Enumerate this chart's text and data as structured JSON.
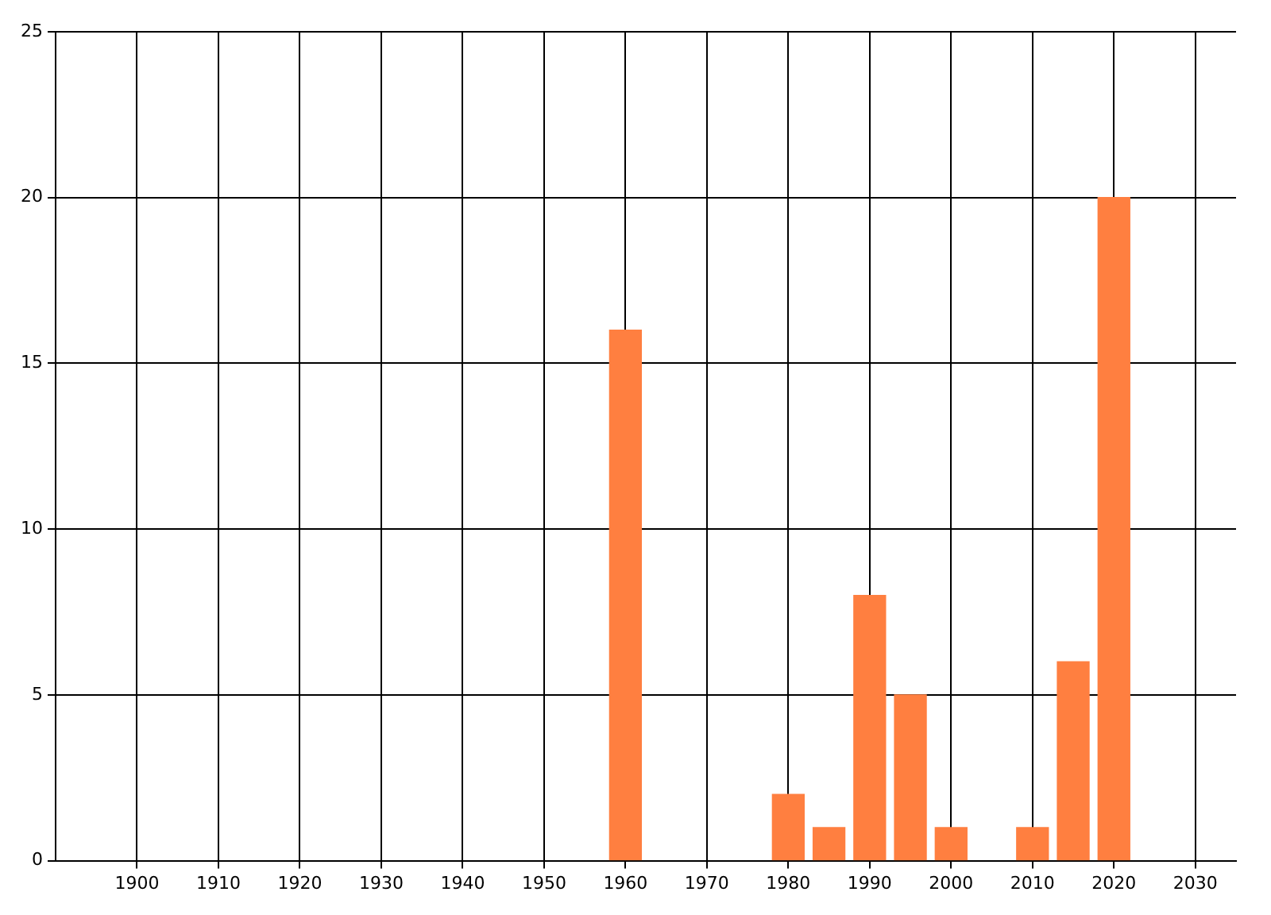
{
  "chart_data": {
    "type": "bar",
    "x": [
      1960,
      1980,
      1985,
      1990,
      1995,
      2000,
      2010,
      2015,
      2020
    ],
    "values": [
      16,
      2,
      1,
      8,
      5,
      1,
      1,
      6,
      20
    ],
    "color": "#ff7f40",
    "xlim": [
      1890,
      2035
    ],
    "xticks": [
      1900,
      1910,
      1920,
      1930,
      1940,
      1950,
      1960,
      1970,
      1980,
      1990,
      2000,
      2010,
      2020,
      2030
    ],
    "ylim": [
      0,
      25
    ],
    "yticks": [
      0,
      5,
      10,
      15,
      20,
      25
    ],
    "grid": true,
    "legend": false
  }
}
